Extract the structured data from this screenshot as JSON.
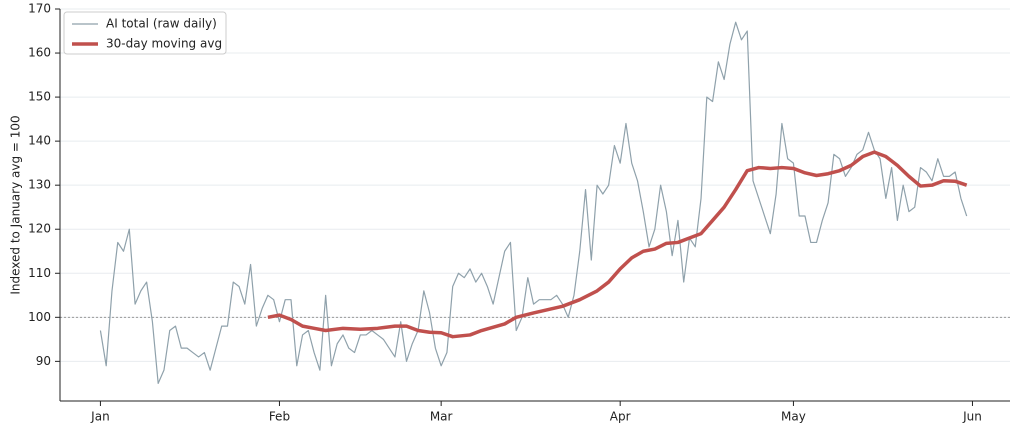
{
  "chart_data": {
    "type": "line",
    "ylabel": "Indexed to January avg = 100",
    "xlim": [
      -7,
      157.5
    ],
    "xticks": [
      {
        "value": 0,
        "label": "Jan"
      },
      {
        "value": 31,
        "label": "Feb"
      },
      {
        "value": 59,
        "label": "Mar"
      },
      {
        "value": 90,
        "label": "Apr"
      },
      {
        "value": 120,
        "label": "May"
      },
      {
        "value": 151,
        "label": "Jun"
      }
    ],
    "ylim": [
      81,
      170
    ],
    "yticks": [
      90,
      100,
      110,
      120,
      130,
      140,
      150,
      160,
      170
    ],
    "grid": true,
    "reference_line": 100,
    "legend": "upper left",
    "series": [
      {
        "name": "AI total (raw daily)",
        "color": "#8fa1ab",
        "width": 1.2,
        "x": [
          0,
          1,
          2,
          3,
          4,
          5,
          6,
          7,
          8,
          9,
          10,
          11,
          12,
          13,
          14,
          15,
          16,
          17,
          18,
          19,
          20,
          21,
          22,
          23,
          24,
          25,
          26,
          27,
          28,
          29,
          30,
          31,
          32,
          33,
          34,
          35,
          36,
          37,
          38,
          39,
          40,
          41,
          42,
          43,
          44,
          45,
          46,
          47,
          48,
          49,
          50,
          51,
          52,
          53,
          54,
          55,
          56,
          57,
          58,
          59,
          60,
          61,
          62,
          63,
          64,
          65,
          66,
          67,
          68,
          69,
          70,
          71,
          72,
          73,
          74,
          75,
          76,
          77,
          78,
          79,
          80,
          81,
          82,
          83,
          84,
          85,
          86,
          87,
          88,
          89,
          90,
          91,
          92,
          93,
          94,
          95,
          96,
          97,
          98,
          99,
          100,
          101,
          102,
          103,
          104,
          105,
          106,
          107,
          108,
          109,
          110,
          111,
          112,
          113,
          114,
          115,
          116,
          117,
          118,
          119,
          120,
          121,
          122,
          123,
          124,
          125,
          126,
          127,
          128,
          129,
          130,
          131,
          132,
          133,
          134,
          135,
          136,
          137,
          138,
          139,
          140,
          141,
          142,
          143,
          144,
          145,
          146,
          147,
          148,
          149,
          150
        ],
        "values": [
          97,
          89,
          106,
          117,
          115,
          120,
          103,
          106,
          108,
          99,
          85,
          88,
          97,
          98,
          93,
          93,
          92,
          91,
          92,
          88,
          93,
          98,
          98,
          108,
          107,
          103,
          112,
          98,
          102,
          105,
          104,
          99,
          104,
          104,
          89,
          96,
          97,
          92,
          88,
          105,
          89,
          94,
          96,
          93,
          92,
          96,
          96,
          97,
          96,
          95,
          93,
          91,
          99,
          90,
          94,
          97,
          106,
          101,
          93,
          89,
          92,
          107,
          110,
          109,
          111,
          108,
          110,
          107,
          103,
          109,
          115,
          117,
          97,
          100,
          109,
          103,
          104,
          104,
          104,
          105,
          103,
          100,
          105,
          115,
          129,
          113,
          130,
          128,
          130,
          139,
          135,
          144,
          135,
          131,
          124,
          116,
          120,
          130,
          124,
          114,
          122,
          108,
          118,
          116,
          127,
          150,
          149,
          158,
          154,
          162,
          167,
          163,
          165,
          131,
          127,
          123,
          119,
          128,
          144,
          136,
          135,
          123,
          123,
          117,
          117,
          122,
          126,
          137,
          136,
          132,
          134,
          137,
          138,
          142,
          138,
          136,
          127,
          134,
          122,
          130,
          124,
          125,
          134,
          133,
          131,
          136,
          132,
          132,
          133,
          127,
          123
        ]
      },
      {
        "name": "30-day moving avg",
        "color": "#c0504d",
        "width": 3.5,
        "x": [
          29,
          31,
          33,
          35,
          37,
          39,
          42,
          45,
          48,
          51,
          53,
          55,
          57,
          59,
          61,
          64,
          66,
          70,
          72,
          75,
          80,
          83,
          86,
          88,
          90,
          92,
          94,
          96,
          98,
          100,
          102,
          104,
          106,
          108,
          110,
          112,
          114,
          116,
          118,
          120,
          122,
          124,
          126,
          128,
          130,
          132,
          134,
          136,
          138,
          140,
          142,
          144,
          146,
          148,
          150
        ],
        "values": [
          100,
          100.5,
          99.5,
          98,
          97.5,
          97,
          97.5,
          97.3,
          97.5,
          98,
          98,
          97,
          96.6,
          96.5,
          95.6,
          96,
          97,
          98.5,
          100,
          101,
          102.5,
          104,
          106,
          108,
          111,
          113.5,
          115,
          115.5,
          116.8,
          117,
          118,
          119,
          122,
          125,
          129,
          133.3,
          134,
          133.8,
          134,
          133.8,
          132.8,
          132.2,
          132.6,
          133.3,
          134.5,
          136.5,
          137.5,
          136.5,
          134.5,
          132,
          129.8,
          130,
          131,
          130.9,
          130
        ]
      }
    ]
  }
}
